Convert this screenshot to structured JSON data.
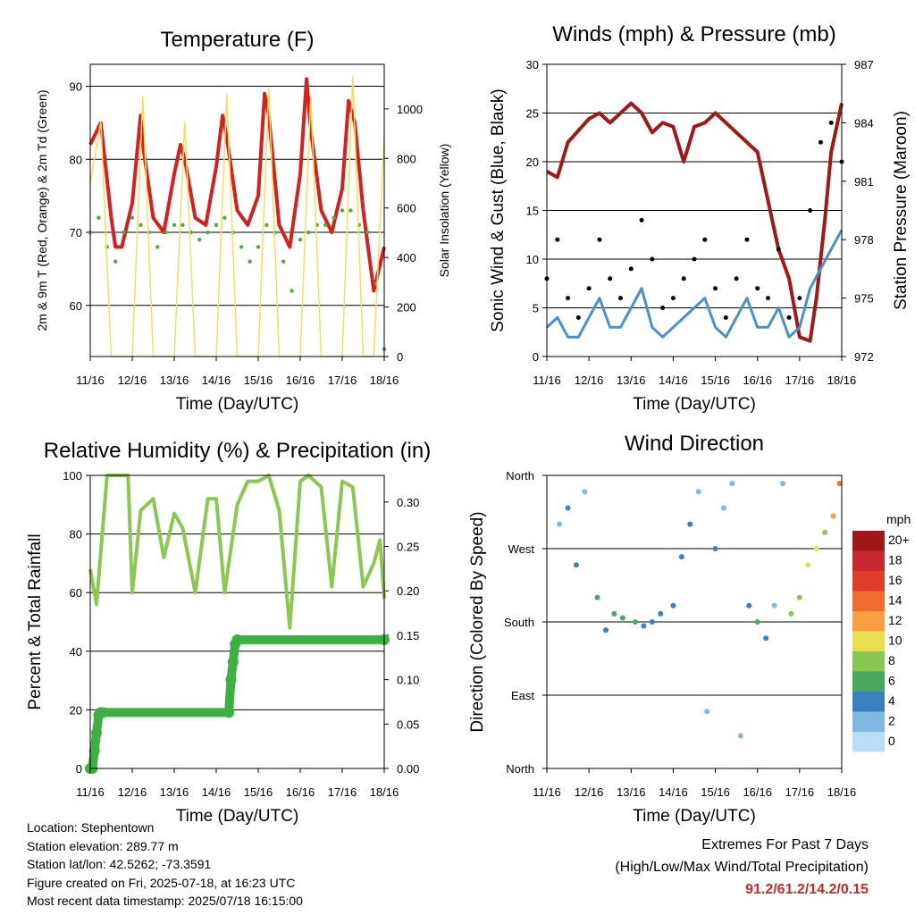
{
  "chart_data": [
    {
      "type": "line",
      "title": "Temperature (F)",
      "xlabel": "Time (Day/UTC)",
      "ylabel_left": "2m & 9m T (Red, Orange) & 2m Td (Green)",
      "ylabel_right": "Solar Insolation (Yellow)",
      "x_ticks": [
        "11/16",
        "12/16",
        "13/16",
        "14/16",
        "15/16",
        "16/16",
        "17/16",
        "18/16"
      ],
      "ylim_left": [
        53,
        93
      ],
      "yticks_left": [
        60,
        70,
        80,
        90
      ],
      "ylim_right": [
        0,
        1180
      ],
      "yticks_right": [
        0,
        200,
        400,
        600,
        800,
        1000
      ],
      "grid": true,
      "colors": {
        "t2m": "#d62020",
        "t9m": "#f08a24",
        "td2m": "#4fae3a",
        "solar": "#f8dc5c"
      },
      "series": [
        {
          "name": "2m T",
          "color": "#d62020",
          "x": [
            0,
            0.25,
            0.5,
            0.6,
            0.75,
            1.0,
            1.2,
            1.25,
            1.5,
            1.75,
            2.0,
            2.15,
            2.25,
            2.5,
            2.75,
            3.0,
            3.15,
            3.25,
            3.5,
            3.75,
            4.0,
            4.15,
            4.25,
            4.5,
            4.75,
            5.0,
            5.15,
            5.25,
            5.5,
            5.75,
            6.0,
            6.15,
            6.3,
            6.5,
            6.75,
            7.0
          ],
          "values": [
            82,
            85,
            72,
            68,
            68,
            74,
            86,
            82,
            72,
            70,
            78,
            82,
            80,
            72,
            71,
            79,
            86,
            83,
            73,
            71,
            75,
            89,
            86,
            71,
            68,
            78,
            91,
            84,
            73,
            70,
            76,
            88,
            85,
            73,
            62,
            68
          ]
        },
        {
          "name": "2m Td",
          "color": "#4fae3a",
          "x": [
            0,
            0.2,
            0.4,
            0.6,
            0.8,
            1.0,
            1.2,
            1.4,
            1.6,
            1.8,
            2.0,
            2.2,
            2.4,
            2.6,
            2.8,
            3.0,
            3.2,
            3.4,
            3.6,
            3.8,
            4.0,
            4.2,
            4.4,
            4.6,
            4.8,
            5.0,
            5.2,
            5.4,
            5.6,
            5.8,
            6.0,
            6.2,
            6.4,
            6.6,
            6.8,
            7.0
          ],
          "values": [
            70,
            72,
            68,
            66,
            70,
            72,
            71,
            70,
            68,
            70,
            71,
            71,
            70,
            69,
            70,
            71,
            72,
            70,
            68,
            66,
            68,
            71,
            70,
            66,
            62,
            69,
            70,
            71,
            71,
            72,
            73,
            73,
            71,
            70,
            63,
            54
          ]
        },
        {
          "name": "Solar",
          "color": "#f8dc5c",
          "x": [
            0,
            0.25,
            0.5,
            0.75,
            1.0,
            1.25,
            1.5,
            1.75,
            2.0,
            2.25,
            2.5,
            2.75,
            3.0,
            3.25,
            3.5,
            3.75,
            4.0,
            4.25,
            4.5,
            4.75,
            5.0,
            5.25,
            5.5,
            5.75,
            6.0,
            6.25,
            6.5,
            6.75,
            7.0
          ],
          "values": [
            700,
            950,
            0,
            0,
            0,
            1050,
            0,
            0,
            0,
            950,
            0,
            0,
            0,
            1060,
            0,
            0,
            0,
            1080,
            0,
            0,
            0,
            1050,
            0,
            0,
            0,
            1130,
            0,
            0,
            900
          ]
        }
      ]
    },
    {
      "type": "line",
      "title": "Winds (mph) & Pressure (mb)",
      "xlabel": "Time (Day/UTC)",
      "ylabel_left": "Sonic Wind & Gust (Blue, Black)",
      "ylabel_right": "Station Pressure (Maroon)",
      "x_ticks": [
        "11/16",
        "12/16",
        "13/16",
        "14/16",
        "15/16",
        "16/16",
        "17/16",
        "18/16"
      ],
      "ylim_left": [
        0,
        30
      ],
      "yticks_left": [
        0,
        5,
        10,
        15,
        20,
        25,
        30
      ],
      "ylim_right": [
        972,
        987
      ],
      "yticks_right": [
        972,
        975,
        978,
        981,
        984,
        987
      ],
      "grid": true,
      "colors": {
        "wind": "#4a90cc",
        "gust": "#000000",
        "pressure": "#a01818"
      },
      "series": [
        {
          "name": "Pressure",
          "color": "#a01818",
          "x": [
            0,
            0.25,
            0.5,
            1.0,
            1.25,
            1.5,
            2.0,
            2.25,
            2.5,
            2.75,
            3.0,
            3.25,
            3.5,
            3.75,
            4.0,
            4.25,
            4.5,
            5.0,
            5.25,
            5.5,
            5.75,
            6.0,
            6.25,
            6.4,
            6.6,
            6.75,
            7.0
          ],
          "values": [
            981.5,
            981.2,
            983.0,
            984.2,
            984.5,
            984.0,
            985.0,
            984.5,
            983.5,
            984.0,
            983.8,
            982.0,
            983.8,
            984.0,
            984.5,
            984.0,
            983.5,
            982.5,
            980.0,
            977.5,
            976.0,
            973.0,
            972.8,
            975.0,
            979.0,
            982.5,
            985.0
          ]
        },
        {
          "name": "Wind",
          "color": "#4a90cc",
          "x": [
            0,
            0.25,
            0.5,
            0.75,
            1.0,
            1.25,
            1.5,
            1.75,
            2.0,
            2.25,
            2.5,
            2.75,
            3.0,
            3.25,
            3.5,
            3.75,
            4.0,
            4.25,
            4.5,
            4.75,
            5.0,
            5.25,
            5.5,
            5.75,
            6.0,
            6.25,
            6.5,
            6.75,
            7.0
          ],
          "values": [
            3,
            4,
            2,
            2,
            4,
            6,
            3,
            3,
            5,
            7,
            3,
            2,
            3,
            4,
            5,
            6,
            3,
            2,
            4,
            6,
            3,
            3,
            5,
            2,
            3,
            7,
            9,
            11,
            13
          ]
        },
        {
          "name": "Gust",
          "color": "#000000",
          "x": [
            0,
            0.25,
            0.5,
            0.75,
            1.0,
            1.25,
            1.5,
            1.75,
            2.0,
            2.25,
            2.5,
            2.75,
            3.0,
            3.25,
            3.5,
            3.75,
            4.0,
            4.25,
            4.5,
            4.75,
            5.0,
            5.25,
            5.5,
            5.75,
            6.0,
            6.25,
            6.5,
            6.75,
            7.0
          ],
          "values": [
            8,
            12,
            6,
            4,
            7,
            12,
            8,
            6,
            9,
            14,
            10,
            5,
            6,
            8,
            10,
            12,
            7,
            4,
            8,
            12,
            7,
            6,
            11,
            4,
            6,
            15,
            22,
            24,
            20
          ]
        }
      ]
    },
    {
      "type": "line",
      "title": "Relative Humidity (%) & Precipitation (in)",
      "xlabel": "Time (Day/UTC)",
      "ylabel_left": "Percent & Total Rainfall",
      "x_ticks": [
        "11/16",
        "12/16",
        "13/16",
        "14/16",
        "15/16",
        "16/16",
        "17/16",
        "18/16"
      ],
      "ylim_left": [
        0,
        100
      ],
      "yticks_left": [
        0,
        20,
        40,
        60,
        80,
        100
      ],
      "ylim_right": [
        0,
        0.33
      ],
      "yticks_right": [
        "0.00",
        "0.05",
        "0.10",
        "0.15",
        "0.20",
        "0.25",
        "0.30"
      ],
      "grid": true,
      "colors": {
        "rh": "#8cc850",
        "precip": "#3cb040"
      },
      "series": [
        {
          "name": "RH",
          "color": "#8cc850",
          "x": [
            0,
            0.15,
            0.4,
            0.7,
            0.9,
            1.0,
            1.2,
            1.5,
            1.75,
            2.0,
            2.2,
            2.5,
            2.8,
            3.0,
            3.2,
            3.5,
            3.75,
            4.0,
            4.25,
            4.5,
            4.75,
            5.0,
            5.2,
            5.5,
            5.75,
            6.0,
            6.25,
            6.5,
            6.75,
            6.9,
            7.0
          ],
          "values": [
            68,
            56,
            100,
            100,
            100,
            60,
            88,
            92,
            72,
            87,
            82,
            60,
            92,
            92,
            60,
            90,
            98,
            98,
            100,
            88,
            48,
            98,
            100,
            96,
            62,
            98,
            96,
            62,
            70,
            78,
            58
          ]
        },
        {
          "name": "Precipitation",
          "color": "#3cb040",
          "x": [
            0,
            0.05,
            0.1,
            0.15,
            0.2,
            0.25,
            0.3,
            3.3,
            3.35,
            3.4,
            3.45,
            3.5,
            7.0
          ],
          "values": [
            0,
            0,
            0.02,
            0.04,
            0.06,
            0.063,
            0.063,
            0.063,
            0.1,
            0.12,
            0.14,
            0.145,
            0.145
          ]
        }
      ]
    },
    {
      "type": "scatter",
      "title": "Wind Direction",
      "xlabel": "Time (Day/UTC)",
      "ylabel": "Direction (Colored By Speed)",
      "x_ticks": [
        "11/16",
        "12/16",
        "13/16",
        "14/16",
        "15/16",
        "16/16",
        "17/16",
        "18/16"
      ],
      "y_ticks": [
        "North",
        "East",
        "South",
        "West",
        "North"
      ],
      "ylim": [
        0,
        360
      ],
      "grid": true,
      "colorbar": {
        "title": "mph",
        "labels": [
          "20+",
          "18",
          "16",
          "14",
          "12",
          "10",
          "8",
          "6",
          "4",
          "2",
          "0"
        ],
        "colors": [
          "#a01818",
          "#c8282c",
          "#e03c2c",
          "#f06c2c",
          "#f8a040",
          "#e8e050",
          "#88c850",
          "#48a860",
          "#3c80c0",
          "#80b8e0",
          "#b8e0f4"
        ]
      },
      "points": [
        {
          "x": 0.3,
          "dir": 300,
          "spd": 3
        },
        {
          "x": 0.5,
          "dir": 320,
          "spd": 4
        },
        {
          "x": 0.7,
          "dir": 250,
          "spd": 4
        },
        {
          "x": 0.9,
          "dir": 340,
          "spd": 2
        },
        {
          "x": 1.2,
          "dir": 210,
          "spd": 6
        },
        {
          "x": 1.4,
          "dir": 170,
          "spd": 4
        },
        {
          "x": 1.6,
          "dir": 190,
          "spd": 6
        },
        {
          "x": 1.8,
          "dir": 185,
          "spd": 7
        },
        {
          "x": 2.1,
          "dir": 180,
          "spd": 7
        },
        {
          "x": 2.3,
          "dir": 175,
          "spd": 5
        },
        {
          "x": 2.5,
          "dir": 180,
          "spd": 4
        },
        {
          "x": 2.7,
          "dir": 190,
          "spd": 4
        },
        {
          "x": 3.0,
          "dir": 200,
          "spd": 4
        },
        {
          "x": 3.2,
          "dir": 260,
          "spd": 4
        },
        {
          "x": 3.4,
          "dir": 300,
          "spd": 4
        },
        {
          "x": 3.6,
          "dir": 340,
          "spd": 2
        },
        {
          "x": 3.8,
          "dir": 70,
          "spd": 2
        },
        {
          "x": 4.0,
          "dir": 270,
          "spd": 4
        },
        {
          "x": 4.2,
          "dir": 320,
          "spd": 3
        },
        {
          "x": 4.4,
          "dir": 350,
          "spd": 2
        },
        {
          "x": 4.6,
          "dir": 40,
          "spd": 2
        },
        {
          "x": 4.8,
          "dir": 200,
          "spd": 5
        },
        {
          "x": 5.0,
          "dir": 180,
          "spd": 6
        },
        {
          "x": 5.2,
          "dir": 160,
          "spd": 4
        },
        {
          "x": 5.4,
          "dir": 200,
          "spd": 3
        },
        {
          "x": 5.6,
          "dir": 350,
          "spd": 3
        },
        {
          "x": 5.8,
          "dir": 190,
          "spd": 8
        },
        {
          "x": 6.0,
          "dir": 210,
          "spd": 9
        },
        {
          "x": 6.2,
          "dir": 250,
          "spd": 11
        },
        {
          "x": 6.4,
          "dir": 270,
          "spd": 10
        },
        {
          "x": 6.6,
          "dir": 290,
          "spd": 8
        },
        {
          "x": 6.8,
          "dir": 310,
          "spd": 12
        },
        {
          "x": 6.95,
          "dir": 350,
          "spd": 14
        }
      ]
    }
  ],
  "footer": {
    "location": "Location: Stephentown",
    "elevation": "Station elevation: 289.77 m",
    "latlon": "Station lat/lon: 42.5262; -73.3591",
    "created": "Figure created on Fri, 2025-07-18, at 16:23 UTC",
    "recent": "Most recent data timestamp: 2025/07/18 16:15:00"
  },
  "extremes": {
    "title": "Extremes For Past 7 Days",
    "subtitle": "(High/Low/Max Wind/Total Precipitation)",
    "values": "91.2/61.2/14.2/0.15"
  }
}
